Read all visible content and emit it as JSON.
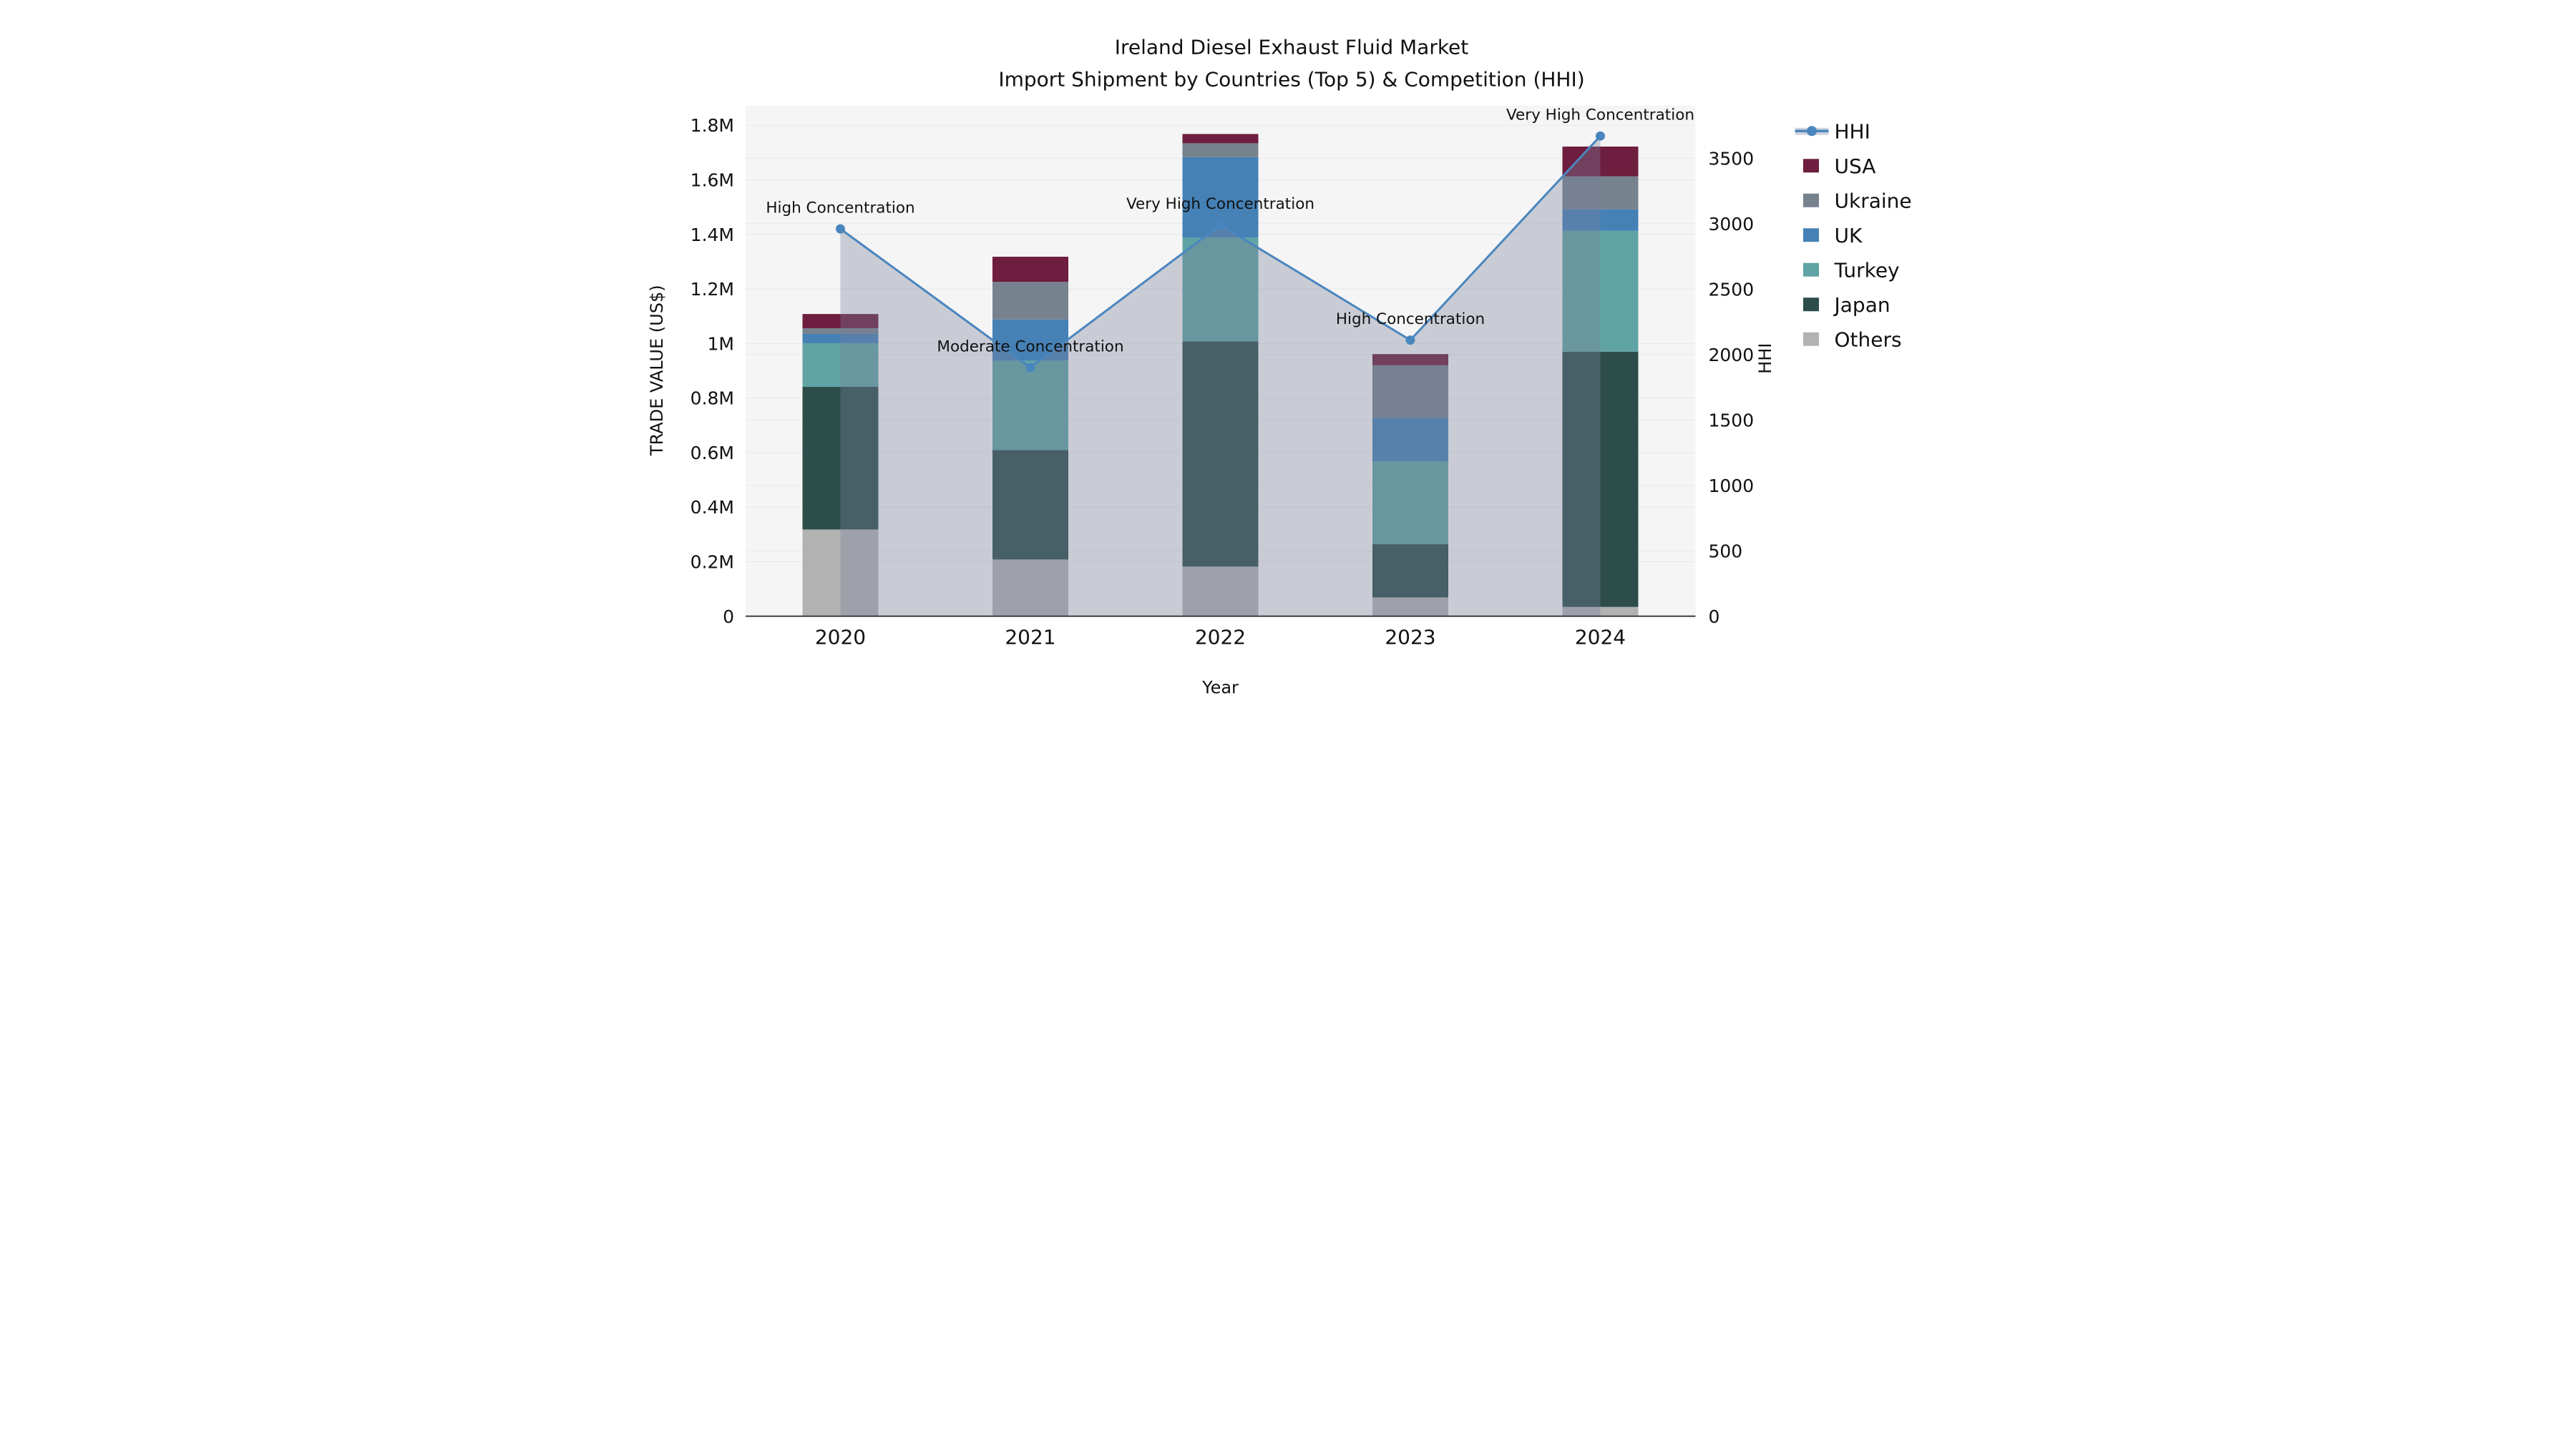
{
  "chart_data": {
    "type": "combo: stacked-bar (left axis) + line-with-area (right axis)",
    "title": "Ireland Diesel Exhaust Fluid Market",
    "subtitle": "Import Shipment by Countries (Top 5) & Competition (HHI)",
    "xlabel": "Year",
    "ylabel_left": "TRADE VALUE (US$)",
    "ylabel_right": "HHI",
    "categories": [
      "2020",
      "2021",
      "2022",
      "2023",
      "2024"
    ],
    "bar_series_bottom_to_top": [
      {
        "name": "Others",
        "values": [
          318000,
          208000,
          182000,
          69000,
          34000
        ]
      },
      {
        "name": "Japan",
        "values": [
          523000,
          401000,
          826000,
          195000,
          936000
        ]
      },
      {
        "name": "Turkey",
        "values": [
          160000,
          328000,
          380000,
          304000,
          443000
        ]
      },
      {
        "name": "UK",
        "values": [
          34000,
          151000,
          295000,
          159000,
          79000
        ]
      },
      {
        "name": "Ukraine",
        "values": [
          21000,
          138000,
          51000,
          193000,
          121000
        ]
      },
      {
        "name": "USA",
        "values": [
          52000,
          92000,
          34000,
          41000,
          109000
        ]
      }
    ],
    "bar_totals": [
      1108000,
      1318000,
      1768000,
      961000,
      1722000
    ],
    "line_series": {
      "name": "HHI",
      "axis": "right",
      "values": [
        2960,
        1900,
        2990,
        2110,
        3670
      ]
    },
    "annotations": [
      "High Concentration",
      "Moderate Concentration",
      "Very High Concentration",
      "High Concentration",
      "Very High Concentration"
    ],
    "left_axis": {
      "tick_labels": [
        "0",
        "0.2M",
        "0.4M",
        "0.6M",
        "0.8M",
        "1M",
        "1.2M",
        "1.4M",
        "1.6M",
        "1.8M"
      ],
      "tick_values": [
        0,
        200000,
        400000,
        600000,
        800000,
        1000000,
        1200000,
        1400000,
        1600000,
        1800000
      ],
      "range": [
        0,
        1872000
      ]
    },
    "right_axis": {
      "tick_labels": [
        "0",
        "500",
        "1000",
        "1500",
        "2000",
        "2500",
        "3000",
        "3500"
      ],
      "tick_values": [
        0,
        500,
        1000,
        1500,
        2000,
        2500,
        3000,
        3500
      ],
      "range": [
        0,
        3902
      ]
    },
    "legend_entries": [
      {
        "label": "HHI",
        "type": "line",
        "color": "#4a86be"
      },
      {
        "label": "USA",
        "type": "box",
        "color": "#6e1e3e"
      },
      {
        "label": "Ukraine",
        "type": "box",
        "color": "#77828f"
      },
      {
        "label": "UK",
        "type": "box",
        "color": "#4581b5"
      },
      {
        "label": "Turkey",
        "type": "box",
        "color": "#60a3a4"
      },
      {
        "label": "Japan",
        "type": "box",
        "color": "#2d4d4b"
      },
      {
        "label": "Others",
        "type": "box",
        "color": "#b2b2b2"
      }
    ],
    "colors": {
      "USA": "#6e1e3e",
      "Ukraine": "#77828f",
      "UK": "#4581b5",
      "Turkey": "#60a3a4",
      "Japan": "#2d4d4b",
      "Others": "#b2b2b2",
      "hhi_line": "#4a86be",
      "hhi_area_fill": "#78829b",
      "hhi_area_opacity": "0.35",
      "plot_background": "#f5f5f5",
      "gridline": "#e9e9ec",
      "axis_spine": "#3f3f3f",
      "text": "#111111"
    },
    "grid": "on",
    "legend_position": "right"
  }
}
